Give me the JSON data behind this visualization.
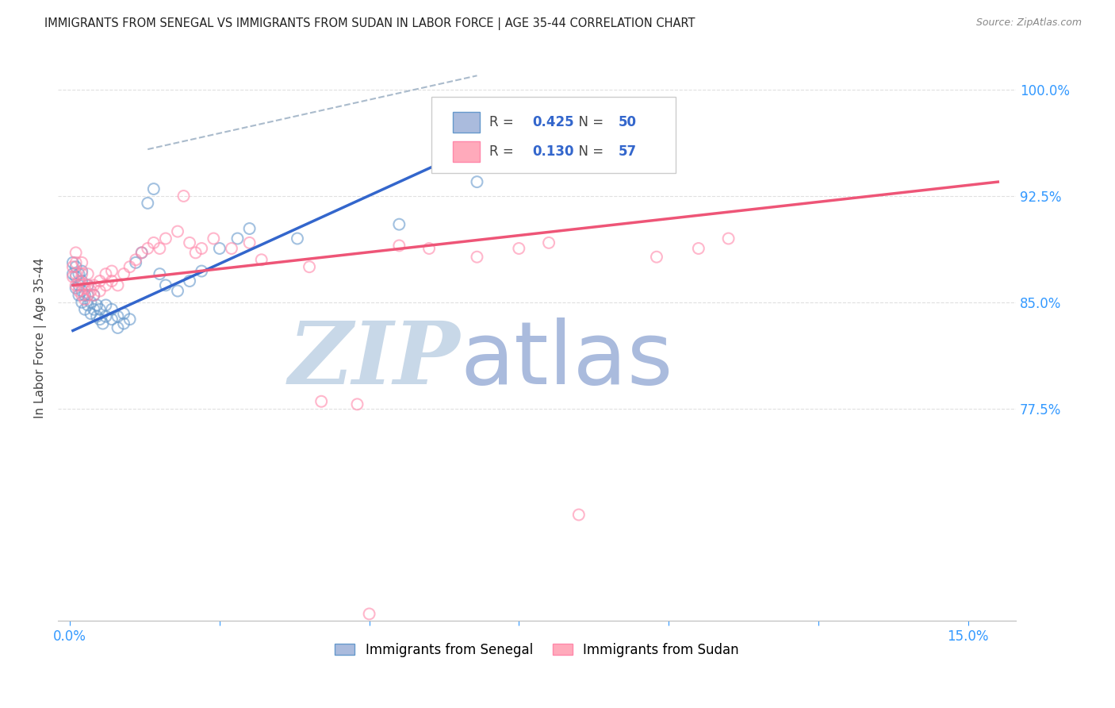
{
  "title": "IMMIGRANTS FROM SENEGAL VS IMMIGRANTS FROM SUDAN IN LABOR FORCE | AGE 35-44 CORRELATION CHART",
  "source": "Source: ZipAtlas.com",
  "ylabel": "In Labor Force | Age 35-44",
  "ylim": [
    0.625,
    1.025
  ],
  "xlim": [
    -0.002,
    0.158
  ],
  "x_ticks": [
    0.0,
    0.025,
    0.05,
    0.075,
    0.1,
    0.125,
    0.15
  ],
  "y_ticks": [
    0.775,
    0.85,
    0.925,
    1.0
  ],
  "background_color": "#ffffff",
  "grid_color": "#e0e0e0",
  "senegal_color": "#6699cc",
  "sudan_color": "#ff88aa",
  "senegal_R": 0.425,
  "senegal_N": 50,
  "sudan_R": 0.13,
  "sudan_N": 57,
  "senegal_scatter": [
    [
      0.0005,
      0.87
    ],
    [
      0.0005,
      0.878
    ],
    [
      0.001,
      0.86
    ],
    [
      0.001,
      0.868
    ],
    [
      0.001,
      0.875
    ],
    [
      0.0015,
      0.855
    ],
    [
      0.0015,
      0.862
    ],
    [
      0.0015,
      0.87
    ],
    [
      0.002,
      0.85
    ],
    [
      0.002,
      0.858
    ],
    [
      0.002,
      0.865
    ],
    [
      0.002,
      0.872
    ],
    [
      0.0025,
      0.845
    ],
    [
      0.0025,
      0.855
    ],
    [
      0.003,
      0.848
    ],
    [
      0.003,
      0.855
    ],
    [
      0.003,
      0.862
    ],
    [
      0.0035,
      0.842
    ],
    [
      0.0035,
      0.85
    ],
    [
      0.004,
      0.845
    ],
    [
      0.004,
      0.855
    ],
    [
      0.0045,
      0.84
    ],
    [
      0.0045,
      0.848
    ],
    [
      0.005,
      0.838
    ],
    [
      0.005,
      0.845
    ],
    [
      0.0055,
      0.835
    ],
    [
      0.006,
      0.84
    ],
    [
      0.006,
      0.848
    ],
    [
      0.007,
      0.838
    ],
    [
      0.007,
      0.845
    ],
    [
      0.008,
      0.832
    ],
    [
      0.008,
      0.84
    ],
    [
      0.009,
      0.835
    ],
    [
      0.009,
      0.842
    ],
    [
      0.01,
      0.838
    ],
    [
      0.011,
      0.878
    ],
    [
      0.012,
      0.885
    ],
    [
      0.013,
      0.92
    ],
    [
      0.014,
      0.93
    ],
    [
      0.015,
      0.87
    ],
    [
      0.016,
      0.862
    ],
    [
      0.018,
      0.858
    ],
    [
      0.02,
      0.865
    ],
    [
      0.022,
      0.872
    ],
    [
      0.025,
      0.888
    ],
    [
      0.028,
      0.895
    ],
    [
      0.03,
      0.902
    ],
    [
      0.038,
      0.895
    ],
    [
      0.055,
      0.905
    ],
    [
      0.068,
      0.935
    ]
  ],
  "sudan_scatter": [
    [
      0.0005,
      0.868
    ],
    [
      0.0005,
      0.875
    ],
    [
      0.001,
      0.862
    ],
    [
      0.001,
      0.87
    ],
    [
      0.001,
      0.878
    ],
    [
      0.001,
      0.885
    ],
    [
      0.0015,
      0.858
    ],
    [
      0.0015,
      0.865
    ],
    [
      0.002,
      0.855
    ],
    [
      0.002,
      0.862
    ],
    [
      0.002,
      0.87
    ],
    [
      0.002,
      0.878
    ],
    [
      0.0025,
      0.852
    ],
    [
      0.0025,
      0.86
    ],
    [
      0.003,
      0.855
    ],
    [
      0.003,
      0.862
    ],
    [
      0.003,
      0.87
    ],
    [
      0.0035,
      0.858
    ],
    [
      0.004,
      0.855
    ],
    [
      0.004,
      0.862
    ],
    [
      0.005,
      0.858
    ],
    [
      0.005,
      0.865
    ],
    [
      0.006,
      0.862
    ],
    [
      0.006,
      0.87
    ],
    [
      0.007,
      0.865
    ],
    [
      0.007,
      0.872
    ],
    [
      0.008,
      0.862
    ],
    [
      0.009,
      0.87
    ],
    [
      0.01,
      0.875
    ],
    [
      0.011,
      0.88
    ],
    [
      0.012,
      0.885
    ],
    [
      0.013,
      0.888
    ],
    [
      0.014,
      0.892
    ],
    [
      0.015,
      0.888
    ],
    [
      0.016,
      0.895
    ],
    [
      0.018,
      0.9
    ],
    [
      0.019,
      0.925
    ],
    [
      0.02,
      0.892
    ],
    [
      0.021,
      0.885
    ],
    [
      0.022,
      0.888
    ],
    [
      0.024,
      0.895
    ],
    [
      0.027,
      0.888
    ],
    [
      0.03,
      0.892
    ],
    [
      0.032,
      0.88
    ],
    [
      0.04,
      0.875
    ],
    [
      0.042,
      0.78
    ],
    [
      0.048,
      0.778
    ],
    [
      0.055,
      0.89
    ],
    [
      0.06,
      0.888
    ],
    [
      0.068,
      0.882
    ],
    [
      0.075,
      0.888
    ],
    [
      0.08,
      0.892
    ],
    [
      0.098,
      0.882
    ],
    [
      0.105,
      0.888
    ],
    [
      0.11,
      0.895
    ],
    [
      0.05,
      0.63
    ],
    [
      0.085,
      0.7
    ]
  ],
  "senegal_trend_x": [
    0.0005,
    0.068
  ],
  "senegal_trend_y": [
    0.83,
    0.96
  ],
  "sudan_trend_x": [
    0.0005,
    0.155
  ],
  "sudan_trend_y": [
    0.862,
    0.935
  ],
  "dashed_line_x": [
    0.013,
    0.068
  ],
  "dashed_line_y": [
    0.958,
    1.01
  ],
  "watermark_zip": "ZIP",
  "watermark_atlas": "atlas",
  "watermark_color": "#c8d8e8"
}
